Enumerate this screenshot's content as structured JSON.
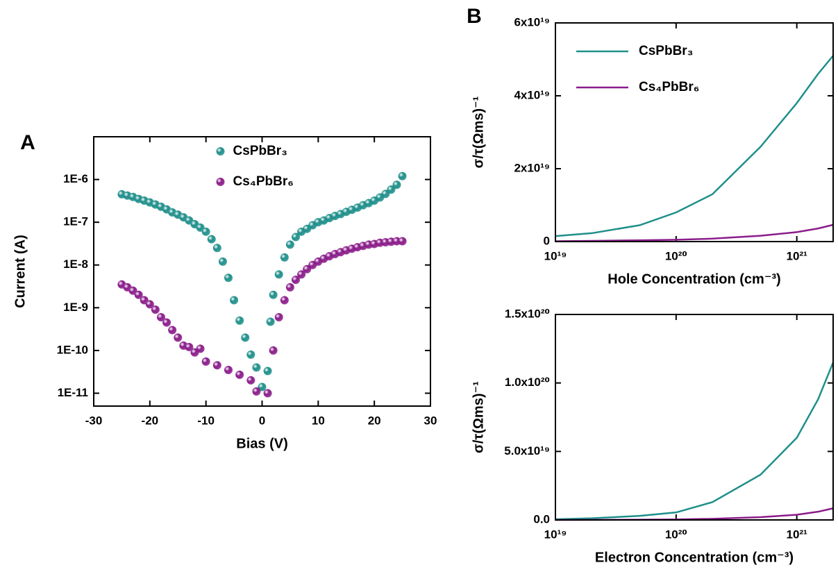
{
  "chart_data": [
    {
      "type": "scatter",
      "panel_label": "A",
      "xlabel": "Bias (V)",
      "ylabel": "Current (A)",
      "xlim": [
        -30,
        30
      ],
      "xticks": [
        -30,
        -20,
        -10,
        0,
        10,
        20,
        30
      ],
      "ylim": [
        5e-12,
        1e-05
      ],
      "yscale": "log",
      "yticks": [
        {
          "value": 1e-11,
          "label": "1E-11"
        },
        {
          "value": 1e-10,
          "label": "1E-10"
        },
        {
          "value": 1e-09,
          "label": "1E-9"
        },
        {
          "value": 1e-08,
          "label": "1E-8"
        },
        {
          "value": 1e-07,
          "label": "1E-7"
        },
        {
          "value": 1e-06,
          "label": "1E-6"
        }
      ],
      "legend": "upper center",
      "series": [
        {
          "name": "CsPbBr₃",
          "color": "#1f8f8a",
          "x": [
            -25,
            -24,
            -23,
            -22,
            -21,
            -20,
            -19,
            -18,
            -17,
            -16,
            -15,
            -14,
            -13,
            -12,
            -11,
            -10,
            -9,
            -8,
            -7,
            -6,
            -5,
            -4,
            -3,
            -2,
            -1,
            0,
            1,
            1.5,
            2,
            3,
            4,
            5,
            6,
            7,
            8,
            9,
            10,
            11,
            12,
            13,
            14,
            15,
            16,
            17,
            18,
            19,
            20,
            21,
            22,
            23,
            24,
            25
          ],
          "values": [
            4.5e-07,
            4.2e-07,
            3.9e-07,
            3.5e-07,
            3.2e-07,
            2.9e-07,
            2.6e-07,
            2.3e-07,
            2e-07,
            1.7e-07,
            1.5e-07,
            1.3e-07,
            1.1e-07,
            9e-08,
            7.5e-08,
            6e-08,
            4e-08,
            2.5e-08,
            1.2e-08,
            5e-09,
            1.5e-09,
            5e-10,
            2e-10,
            8e-11,
            4e-11,
            1.4e-11,
            3.3e-11,
            4.7e-10,
            2e-09,
            6e-09,
            1.5e-08,
            3e-08,
            4.5e-08,
            6e-08,
            7e-08,
            8.5e-08,
            1e-07,
            1.1e-07,
            1.25e-07,
            1.4e-07,
            1.55e-07,
            1.75e-07,
            1.95e-07,
            2.2e-07,
            2.5e-07,
            2.8e-07,
            3.2e-07,
            3.8e-07,
            4.6e-07,
            5.8e-07,
            7.5e-07,
            1.2e-06
          ]
        },
        {
          "name": "Cs₄PbBr₆",
          "color": "#8a1c8a",
          "x": [
            -25,
            -24,
            -23,
            -22,
            -21,
            -20,
            -19,
            -18,
            -17,
            -16,
            -15,
            -14,
            -13,
            -12,
            -11,
            -10,
            -8,
            -6,
            -4,
            -2,
            -1,
            1,
            2,
            3,
            4,
            5,
            6,
            7,
            8,
            9,
            10,
            11,
            12,
            13,
            14,
            15,
            16,
            17,
            18,
            19,
            20,
            21,
            22,
            23,
            24,
            25
          ],
          "values": [
            3.5e-09,
            3e-09,
            2.5e-09,
            2e-09,
            1.5e-09,
            1.2e-09,
            9e-10,
            6e-10,
            4.5e-10,
            3e-10,
            2e-10,
            1.3e-10,
            1.2e-10,
            9e-11,
            1.1e-10,
            5.5e-11,
            4.5e-11,
            3.5e-11,
            2.7e-11,
            2e-11,
            1.1e-11,
            1e-11,
            1e-10,
            6e-10,
            1.5e-09,
            3e-09,
            4.5e-09,
            6e-09,
            8e-09,
            1e-08,
            1.2e-08,
            1.4e-08,
            1.6e-08,
            1.8e-08,
            2e-08,
            2.2e-08,
            2.4e-08,
            2.6e-08,
            2.8e-08,
            3e-08,
            3.1e-08,
            3.3e-08,
            3.4e-08,
            3.5e-08,
            3.6e-08,
            3.6e-08
          ]
        }
      ]
    },
    {
      "type": "line",
      "panel_label": "B",
      "xlabel": "Hole Concentration (cm⁻³)",
      "ylabel": "σ/τ(Ωms)⁻¹",
      "xlim": [
        1e+19,
        2e+21
      ],
      "xscale": "log",
      "xticks": [
        {
          "value": 1e+19,
          "label": "10¹⁹"
        },
        {
          "value": 1e+20,
          "label": "10²⁰"
        },
        {
          "value": 1e+21,
          "label": "10²¹"
        }
      ],
      "ylim": [
        0,
        6e+19
      ],
      "yticks": [
        0,
        {
          "value": 2e+19,
          "label": "2x10¹⁹"
        },
        {
          "value": 4e+19,
          "label": "4x10¹⁹"
        },
        {
          "value": 6e+19,
          "label": "6x10¹⁹"
        }
      ],
      "legend": "upper left",
      "x": [
        1e+19,
        2e+19,
        5e+19,
        1e+20,
        2e+20,
        5e+20,
        1e+21,
        1.5e+21,
        2e+21
      ],
      "series": [
        {
          "name": "CsPbBr₃",
          "color": "#1f8f8a",
          "values": [
            1.5e+18,
            2.3e+18,
            4.5e+18,
            8e+18,
            1.3e+19,
            2.6e+19,
            3.8e+19,
            4.6e+19,
            5.1e+19
          ]
        },
        {
          "name": "Cs₄PbBr₆",
          "color": "#8a1c8a",
          "values": [
            1e+17,
            2e+17,
            3.5e+17,
            5e+17,
            8e+17,
            1.6e+18,
            2.6e+18,
            3.6e+18,
            4.6e+18
          ]
        }
      ]
    },
    {
      "type": "line",
      "xlabel": "Electron Concentration (cm⁻³)",
      "ylabel": "σ/τ(Ωms)⁻¹",
      "xlim": [
        1e+19,
        2e+21
      ],
      "xscale": "log",
      "xticks": [
        {
          "value": 1e+19,
          "label": "10¹⁹"
        },
        {
          "value": 1e+20,
          "label": "10²⁰"
        },
        {
          "value": 1e+21,
          "label": "10²¹"
        }
      ],
      "ylim": [
        0,
        1.5e+20
      ],
      "yticks": [
        {
          "value": 0,
          "label": "0.0"
        },
        {
          "value": 5e+19,
          "label": "5.0x10¹⁹"
        },
        {
          "value": 1e+20,
          "label": "1.0x10²⁰"
        },
        {
          "value": 1.5e+20,
          "label": "1.5x10²⁰"
        }
      ],
      "x": [
        1e+19,
        2e+19,
        5e+19,
        1e+20,
        2e+20,
        5e+20,
        1e+21,
        1.5e+21,
        2e+21
      ],
      "series": [
        {
          "color": "#1f8f8a",
          "values": [
            5e+17,
            1.2e+18,
            3e+18,
            5.5e+18,
            1.3e+19,
            3.3e+19,
            6e+19,
            8.8e+19,
            1.15e+20
          ]
        },
        {
          "color": "#8a1c8a",
          "values": [
            3e+16,
            8e+16,
            2e+17,
            4e+17,
            8e+17,
            2e+18,
            3.8e+18,
            6e+18,
            8.5e+18
          ]
        }
      ]
    }
  ]
}
